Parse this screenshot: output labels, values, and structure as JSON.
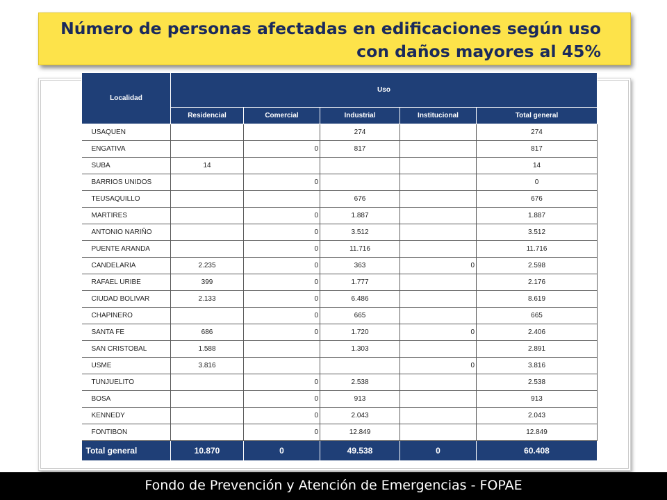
{
  "title": {
    "line1": "Número de personas afectadas en edificaciones según uso",
    "line2": "con daños mayores al 45%"
  },
  "table": {
    "header": {
      "localidad": "Localidad",
      "uso": "Uso",
      "columns": [
        "Residencial",
        "Comercial",
        "Industrial",
        "Institucional",
        "Total general"
      ]
    },
    "rows": [
      {
        "localidad": "USAQUEN",
        "residencial": "",
        "comercial": "",
        "industrial": "274",
        "institucional": "",
        "total": "274"
      },
      {
        "localidad": "ENGATIVA",
        "residencial": "",
        "comercial": "0",
        "industrial": "817",
        "institucional": "",
        "total": "817"
      },
      {
        "localidad": "SUBA",
        "residencial": "14",
        "comercial": "",
        "industrial": "",
        "institucional": "",
        "total": "14"
      },
      {
        "localidad": "BARRIOS UNIDOS",
        "residencial": "",
        "comercial": "0",
        "industrial": "",
        "institucional": "",
        "total": "0"
      },
      {
        "localidad": "TEUSAQUILLO",
        "residencial": "",
        "comercial": "",
        "industrial": "676",
        "institucional": "",
        "total": "676"
      },
      {
        "localidad": "MARTIRES",
        "residencial": "",
        "comercial": "0",
        "industrial": "1.887",
        "institucional": "",
        "total": "1.887"
      },
      {
        "localidad": "ANTONIO NARIÑO",
        "residencial": "",
        "comercial": "0",
        "industrial": "3.512",
        "institucional": "",
        "total": "3.512"
      },
      {
        "localidad": "PUENTE ARANDA",
        "residencial": "",
        "comercial": "0",
        "industrial": "11.716",
        "institucional": "",
        "total": "11.716"
      },
      {
        "localidad": "CANDELARIA",
        "residencial": "2.235",
        "comercial": "0",
        "industrial": "363",
        "institucional": "0",
        "total": "2.598"
      },
      {
        "localidad": "RAFAEL URIBE",
        "residencial": "399",
        "comercial": "0",
        "industrial": "1.777",
        "institucional": "",
        "total": "2.176"
      },
      {
        "localidad": "CIUDAD BOLIVAR",
        "residencial": "2.133",
        "comercial": "0",
        "industrial": "6.486",
        "institucional": "",
        "total": "8.619"
      },
      {
        "localidad": "CHAPINERO",
        "residencial": "",
        "comercial": "0",
        "industrial": "665",
        "institucional": "",
        "total": "665"
      },
      {
        "localidad": "SANTA FE",
        "residencial": "686",
        "comercial": "0",
        "industrial": "1.720",
        "institucional": "0",
        "total": "2.406"
      },
      {
        "localidad": "SAN CRISTOBAL",
        "residencial": "1.588",
        "comercial": "",
        "industrial": "1.303",
        "institucional": "",
        "total": "2.891"
      },
      {
        "localidad": "USME",
        "residencial": "3.816",
        "comercial": "",
        "industrial": "",
        "institucional": "0",
        "total": "3.816"
      },
      {
        "localidad": "TUNJUELITO",
        "residencial": "",
        "comercial": "0",
        "industrial": "2.538",
        "institucional": "",
        "total": "2.538"
      },
      {
        "localidad": "BOSA",
        "residencial": "",
        "comercial": "0",
        "industrial": "913",
        "institucional": "",
        "total": "913"
      },
      {
        "localidad": "KENNEDY",
        "residencial": "",
        "comercial": "0",
        "industrial": "2.043",
        "institucional": "",
        "total": "2.043"
      },
      {
        "localidad": "FONTIBON",
        "residencial": "",
        "comercial": "0",
        "industrial": "12.849",
        "institucional": "",
        "total": "12.849"
      }
    ],
    "total": {
      "label": "Total general",
      "residencial": "10.870",
      "comercial": "0",
      "industrial": "49.538",
      "institucional": "0",
      "total": "60.408"
    }
  },
  "footer": {
    "text": "Fondo de Prevención y Atención de Emergencias - FOPAE"
  },
  "colors": {
    "banner": "#fde34a",
    "title_text": "#1a2a5c",
    "table_header": "#1f3f77",
    "footer_bg": "#000000"
  }
}
